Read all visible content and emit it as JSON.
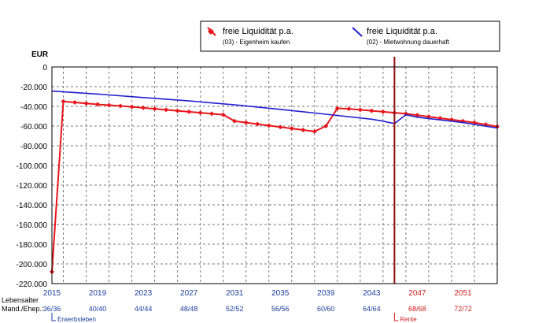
{
  "chart_data": {
    "type": "line",
    "y_unit": "EUR",
    "ylim": [
      -220000,
      0
    ],
    "y_ticks": [
      0,
      -20000,
      -40000,
      -60000,
      -80000,
      -100000,
      -120000,
      -140000,
      -160000,
      -180000,
      -200000,
      -220000
    ],
    "y_tick_labels": [
      "0",
      "-20.000",
      "-40.000",
      "-60.000",
      "-80.000",
      "-100.000",
      "-120.000",
      "-140.000",
      "-160.000",
      "-180.000",
      "-200.000",
      "-220.000"
    ],
    "xlim": [
      2015,
      2054
    ],
    "x_ticks": [
      2015,
      2019,
      2023,
      2027,
      2031,
      2035,
      2039,
      2043,
      2047,
      2051
    ],
    "x_tick_labels": [
      "2015",
      "2019",
      "2023",
      "2027",
      "2031",
      "2035",
      "2039",
      "2043",
      "2047",
      "2051"
    ],
    "row_label_1": "Lebensalter",
    "row_label_2": "Mand./Ehep.:",
    "age_labels": [
      "36/36",
      "40/40",
      "44/44",
      "48/48",
      "52/52",
      "56/56",
      "60/60",
      "64/64",
      "68/68",
      "72/72"
    ],
    "grid": true,
    "legend_position": "top",
    "markers": [
      {
        "x": 2015,
        "label": "Erwerbsleben",
        "color": "#1a3e9a"
      },
      {
        "x": 2045,
        "label": "Rente",
        "color": "#d02020"
      }
    ],
    "vertical_line_x": 2045,
    "series": [
      {
        "name": "freie Liquidität p.a.",
        "subtitle": "(03) - Eigenheim kaufen",
        "color": "#e8151b",
        "marker": "diamond",
        "x": [
          2015,
          2016,
          2017,
          2018,
          2019,
          2020,
          2021,
          2022,
          2023,
          2024,
          2025,
          2026,
          2027,
          2028,
          2029,
          2030,
          2031,
          2032,
          2033,
          2034,
          2035,
          2036,
          2037,
          2038,
          2039,
          2040,
          2041,
          2042,
          2043,
          2044,
          2045,
          2046,
          2047,
          2048,
          2049,
          2050,
          2051,
          2052,
          2053,
          2054
        ],
        "values": [
          -208000,
          -35000,
          -36000,
          -37000,
          -38000,
          -38800,
          -39600,
          -40500,
          -41500,
          -42500,
          -43500,
          -44500,
          -45500,
          -46500,
          -47500,
          -48500,
          -55000,
          -56500,
          -58000,
          -59500,
          -61000,
          -62500,
          -64000,
          -65500,
          -60000,
          -42000,
          -42500,
          -43500,
          -44500,
          -45500,
          -46500,
          -47500,
          -49000,
          -50500,
          -52000,
          -53500,
          -55000,
          -56500,
          -58500,
          -60500
        ]
      },
      {
        "name": "freie Liquidität p.a.",
        "subtitle": "(02) - Mietwohnung dauerhaft",
        "color": "#1f1fd0",
        "x": [
          2015,
          2019,
          2023,
          2027,
          2031,
          2035,
          2039,
          2043,
          2044,
          2045,
          2046,
          2047,
          2051,
          2054
        ],
        "values": [
          -24500,
          -27500,
          -31000,
          -34500,
          -38500,
          -43000,
          -48000,
          -53000,
          -55000,
          -57500,
          -48500,
          -51000,
          -56500,
          -62000
        ]
      }
    ]
  }
}
